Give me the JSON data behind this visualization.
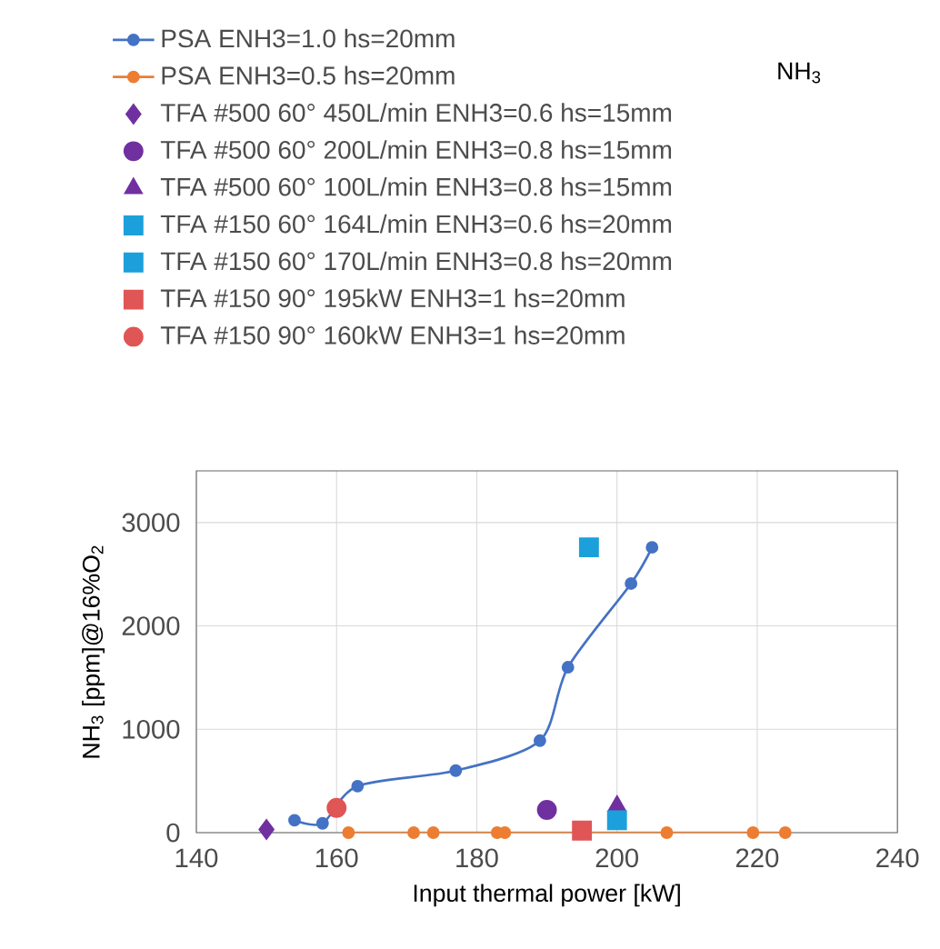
{
  "chart_data": {
    "type": "scatter",
    "title": "NH$_{3}$",
    "xlabel": "Input thermal power [kW]",
    "ylabel": "NH$_{3}$ [ppm]@16%O$_{2}$",
    "xlim": [
      140,
      240
    ],
    "xticks": [
      140,
      160,
      180,
      200,
      220,
      240
    ],
    "ylim": [
      0,
      3500
    ],
    "yticks": [
      0,
      1000,
      2000,
      3000
    ],
    "grid": true,
    "legend": "top",
    "series": [
      {
        "name": "PSA ENH3=1.0 hs=20mm",
        "type": "line",
        "color": "#4472c4",
        "marker": "circle",
        "line_style": "solid",
        "x": [
          154,
          158,
          163,
          177,
          189,
          193,
          202,
          205
        ],
        "values": [
          120,
          90,
          450,
          600,
          890,
          1600,
          2410,
          2760
        ]
      },
      {
        "name": "PSA ENH3=0.5 hs=20mm",
        "type": "line",
        "color": "#ed7d31",
        "marker": "circle",
        "line_style": "solid",
        "x": [
          161.7,
          171,
          173.8,
          182.9,
          184,
          207.1,
          219.4,
          224
        ],
        "values": [
          0,
          0,
          0,
          0,
          0,
          0,
          0,
          0
        ]
      },
      {
        "name": "TFA #500 60° 450L/min ENH3=0.6 hs=15mm",
        "color": "#7030a0",
        "marker": "diamond",
        "x": [
          150
        ],
        "values": [
          30
        ]
      },
      {
        "name": "TFA #500 60° 200L/min ENH3=0.8 hs=15mm",
        "color": "#7030a0",
        "marker": "circle",
        "x": [
          190
        ],
        "values": [
          220
        ]
      },
      {
        "name": "TFA #500 60° 100L/min ENH3=0.8 hs=15mm",
        "color": "#7030a0",
        "marker": "triangle",
        "x": [
          200
        ],
        "values": [
          260
        ]
      },
      {
        "name": "TFA #150 60° 164L/min ENH3=0.6 hs=20mm",
        "color": "#1ca0dc",
        "marker": "square",
        "x": [
          200
        ],
        "values": [
          120
        ]
      },
      {
        "name": "TFA #150 60° 170L/min ENH3=0.8 hs=20mm",
        "color": "#1ca0dc",
        "marker": "square",
        "x": [
          196
        ],
        "values": [
          2760
        ]
      },
      {
        "name": "TFA #150 90° 195kW ENH3=1 hs=20mm",
        "color": "#e05555",
        "marker": "square",
        "x": [
          195
        ],
        "values": [
          20
        ]
      },
      {
        "name": "TFA #150 90° 160kW ENH3=1 hs=20mm",
        "color": "#e05555",
        "marker": "circle",
        "x": [
          160
        ],
        "values": [
          240
        ]
      }
    ]
  }
}
